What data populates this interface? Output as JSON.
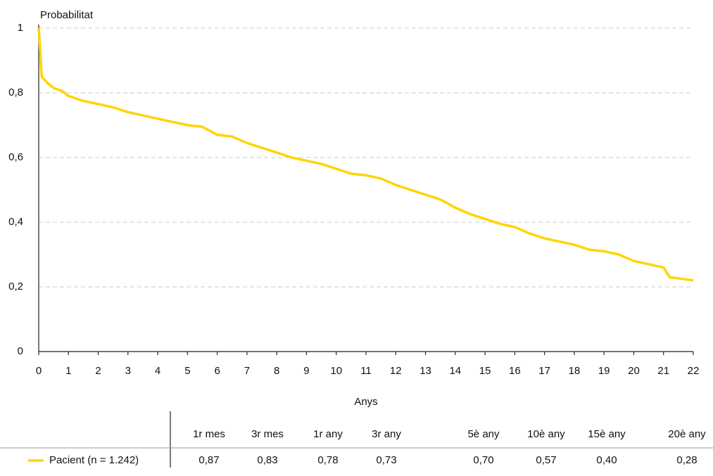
{
  "chart_data": {
    "type": "line",
    "y_label": "Probabilitat",
    "x_label": "Anys",
    "xlim": [
      0,
      22
    ],
    "xticks": [
      0,
      1,
      2,
      3,
      4,
      5,
      6,
      7,
      8,
      9,
      10,
      11,
      12,
      13,
      14,
      15,
      16,
      17,
      18,
      19,
      20,
      21,
      22
    ],
    "ylim": [
      0,
      1
    ],
    "yticks": [
      0,
      {
        "value": 0.2,
        "label": "0,2"
      },
      {
        "value": 0.4,
        "label": "0,4"
      },
      {
        "value": 0.6,
        "label": "0,6"
      },
      {
        "value": 0.8,
        "label": "0,8"
      },
      1
    ],
    "grid": true,
    "x": [
      0,
      0.05,
      0.1,
      0.3,
      0.5,
      0.8,
      1,
      1.5,
      2,
      2.5,
      3,
      3.5,
      4,
      4.5,
      5,
      5.5,
      6,
      6.5,
      7,
      7.5,
      8,
      8.5,
      9,
      9.5,
      10,
      10.5,
      11,
      11.5,
      12,
      12.5,
      13,
      13.5,
      14,
      14.5,
      15,
      15.5,
      16,
      16.5,
      17,
      17.5,
      18,
      18.5,
      19,
      19.5,
      20,
      20.5,
      21,
      21.2,
      22
    ],
    "series": [
      {
        "name": "Pacient (n = 1.242)",
        "color": "#ffd400",
        "values": [
          1.0,
          0.93,
          0.85,
          0.83,
          0.815,
          0.805,
          0.79,
          0.775,
          0.765,
          0.755,
          0.74,
          0.73,
          0.72,
          0.71,
          0.7,
          0.695,
          0.67,
          0.665,
          0.645,
          0.63,
          0.615,
          0.6,
          0.59,
          0.58,
          0.565,
          0.55,
          0.545,
          0.535,
          0.515,
          0.5,
          0.485,
          0.47,
          0.445,
          0.425,
          0.41,
          0.395,
          0.385,
          0.365,
          0.35,
          0.34,
          0.33,
          0.315,
          0.31,
          0.3,
          0.28,
          0.27,
          0.26,
          0.23,
          0.22
        ]
      }
    ]
  },
  "table": {
    "columns": [
      "1r mes",
      "3r mes",
      "1r any",
      "3r any",
      "5è any",
      "10è any",
      "15è any",
      "20è any"
    ],
    "rows": [
      [
        "0,87",
        "0,83",
        "0,78",
        "0,73",
        "0,70",
        "0,57",
        "0,40",
        "0,28"
      ]
    ]
  }
}
